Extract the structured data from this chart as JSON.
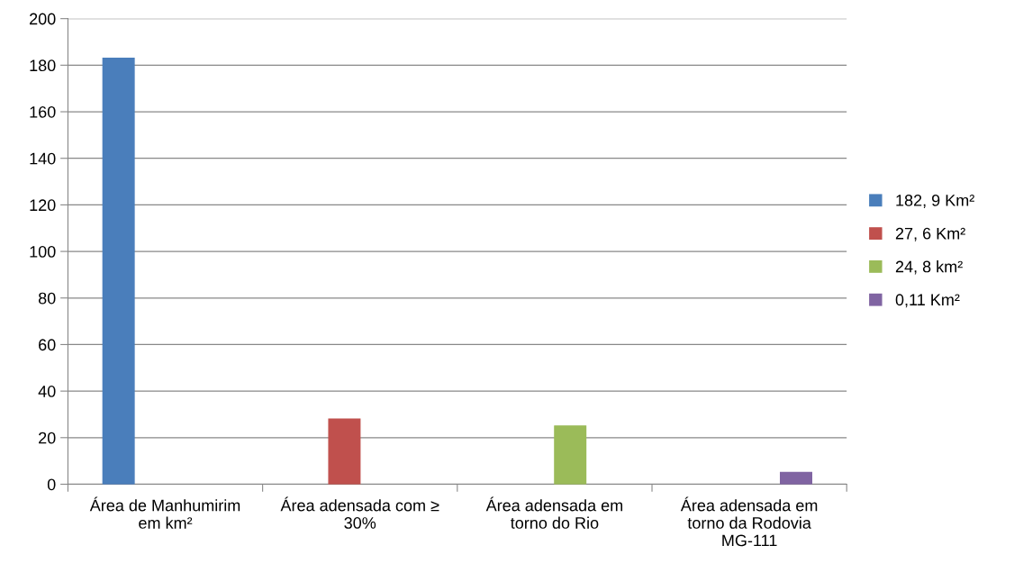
{
  "chart_data": {
    "type": "bar",
    "categories": [
      "Área de Manhumirim em km²",
      "Área adensada com ≥ 30%",
      "Área adensada em torno do Rio",
      "Área adensada em torno da Rodovia MG-111"
    ],
    "series": [
      {
        "name": "182, 9 Km²",
        "color": "#4a7ebb",
        "values": [
          183,
          null,
          null,
          null
        ]
      },
      {
        "name": "27, 6 Km²",
        "color": "#c0504d",
        "values": [
          null,
          28,
          null,
          null
        ]
      },
      {
        "name": "24, 8 km²",
        "color": "#9bbb59",
        "values": [
          null,
          null,
          25,
          null
        ]
      },
      {
        "name": "0,11 Km²",
        "color": "#8064a2",
        "values": [
          null,
          null,
          null,
          5
        ]
      }
    ],
    "ylim": [
      0,
      200
    ],
    "yticks": [
      0,
      20,
      40,
      60,
      80,
      100,
      120,
      140,
      160,
      180,
      200
    ],
    "grid": "y",
    "legend": "right"
  }
}
